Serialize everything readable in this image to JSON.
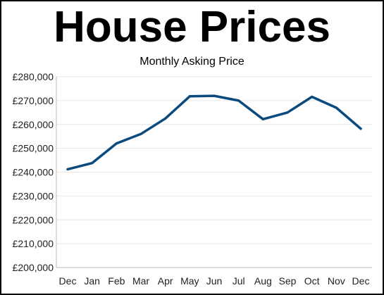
{
  "title": "House Prices",
  "subtitle": "Monthly Asking Price",
  "colors": {
    "line": "#0b4a7d",
    "grid": "#e6e6e6",
    "axis": "#bbbbbb"
  },
  "chart_data": {
    "type": "line",
    "title": "House Prices",
    "subtitle": "Monthly Asking Price",
    "xlabel": "",
    "ylabel": "",
    "categories": [
      "Dec",
      "Jan",
      "Feb",
      "Mar",
      "Apr",
      "May",
      "Jun",
      "Jul",
      "Aug",
      "Sep",
      "Oct",
      "Nov",
      "Dec"
    ],
    "series": [
      {
        "values": [
          241200,
          243800,
          252000,
          256000,
          262500,
          271800,
          272000,
          270000,
          262200,
          265000,
          271600,
          267000,
          258200
        ]
      }
    ],
    "ylim": [
      200000,
      280000
    ],
    "yticks": [
      200000,
      210000,
      220000,
      230000,
      240000,
      250000,
      260000,
      270000,
      280000
    ],
    "ytick_labels": [
      "£200,000",
      "£210,000",
      "£220,000",
      "£230,000",
      "£240,000",
      "£250,000",
      "£260,000",
      "£270,000",
      "£280,000"
    ],
    "grid": true,
    "legend": "none"
  }
}
